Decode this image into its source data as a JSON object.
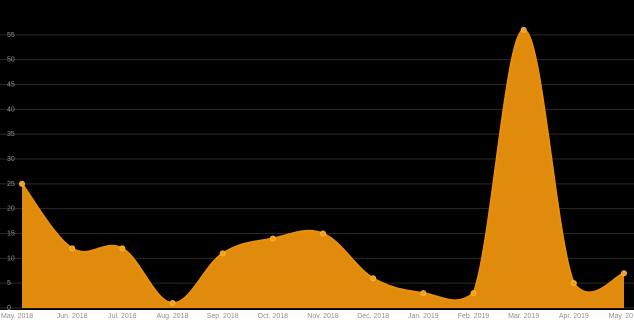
{
  "chart_data": {
    "type": "area",
    "title": "",
    "xlabel": "",
    "ylabel": "",
    "categories": [
      "May. 2018",
      "Jun. 2018",
      "Jul. 2018",
      "Aug. 2018",
      "Sep. 2018",
      "Oct. 2018",
      "Nov. 2018",
      "Dec. 2018",
      "Jan. 2019",
      "Feb. 2019",
      "Mar. 2019",
      "Apr. 2019",
      "May. 20"
    ],
    "series": [
      {
        "values": [
          25,
          12,
          12,
          1,
          11,
          14,
          15,
          6,
          3,
          3,
          56,
          5,
          7
        ]
      }
    ],
    "ylim": [
      0,
      60
    ],
    "yticks": [
      0,
      5,
      10,
      15,
      20,
      25,
      30,
      35,
      40,
      45,
      50,
      55
    ],
    "grid": true,
    "legend": "none",
    "colors": {
      "background": "#000000",
      "fill": "#e8900c",
      "line": "#e8900c",
      "point": "#f0a020",
      "grid": "#2a2a2a",
      "tick_text": "#8f8f8f"
    }
  }
}
